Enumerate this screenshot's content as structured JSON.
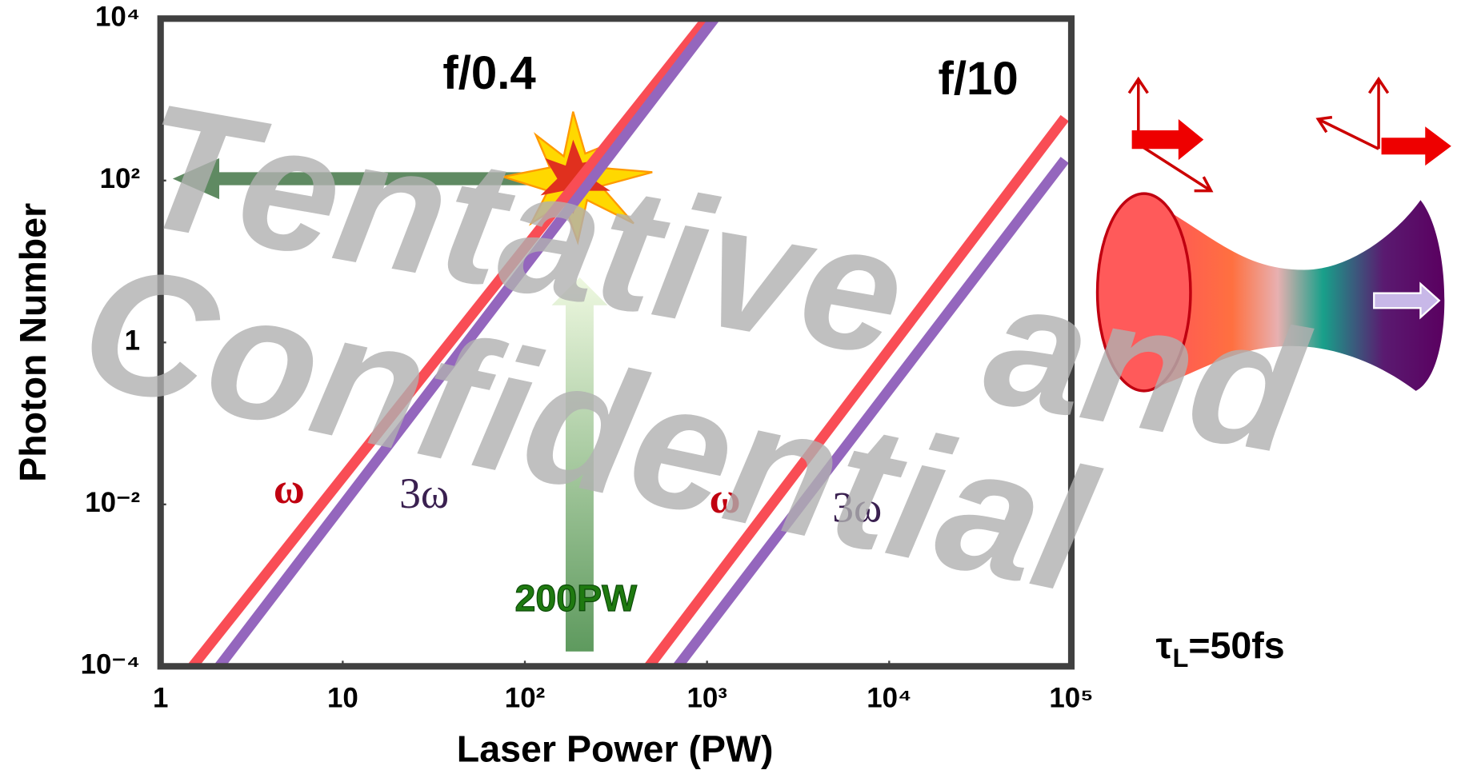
{
  "chart_data": {
    "type": "line",
    "x_label": "Laser Power (PW)",
    "y_label": "Photon Number",
    "log_x": true,
    "log_y": true,
    "xlim": [
      1,
      100000
    ],
    "ylim": [
      0.0001,
      10000
    ],
    "xticks": [
      1,
      10,
      {
        "value": 100,
        "label": "10²"
      },
      {
        "value": 1000,
        "label": "10³"
      },
      {
        "value": 10000,
        "label": "10⁴"
      },
      {
        "value": 100000,
        "label": "10⁵"
      }
    ],
    "yticks": [
      {
        "value": 0.0001,
        "label": "10⁻⁴"
      },
      {
        "value": 0.01,
        "label": "10⁻²"
      },
      1,
      {
        "value": 100,
        "label": "10²"
      },
      {
        "value": 10000,
        "label": "10⁴"
      }
    ],
    "series": [
      {
        "name": "ω",
        "color": "#f94d55",
        "x": [
          1.5,
          1000
        ],
        "values": [
          0.0001,
          10000
        ]
      },
      {
        "name": "3ω",
        "color": "#9466bd",
        "x": [
          2.1,
          1100
        ],
        "values": [
          0.0001,
          10000
        ]
      },
      {
        "name": "ω",
        "color": "#f94d55",
        "x": [
          480,
          92000
        ],
        "values": [
          0.0001,
          590
        ]
      },
      {
        "name": "3ω",
        "color": "#9466bd",
        "x": [
          690,
          92000
        ],
        "values": [
          0.0001,
          180
        ]
      }
    ],
    "annotations": [
      "f/0.4",
      "f/10",
      "200PW"
    ],
    "pulse_duration": {
      "symbol": "τ",
      "subscript": "L",
      "value": "=50fs"
    },
    "diagram_labels": [
      "ω",
      "3ω"
    ],
    "watermark": [
      "Tentative",
      "and",
      "Confidential"
    ]
  }
}
